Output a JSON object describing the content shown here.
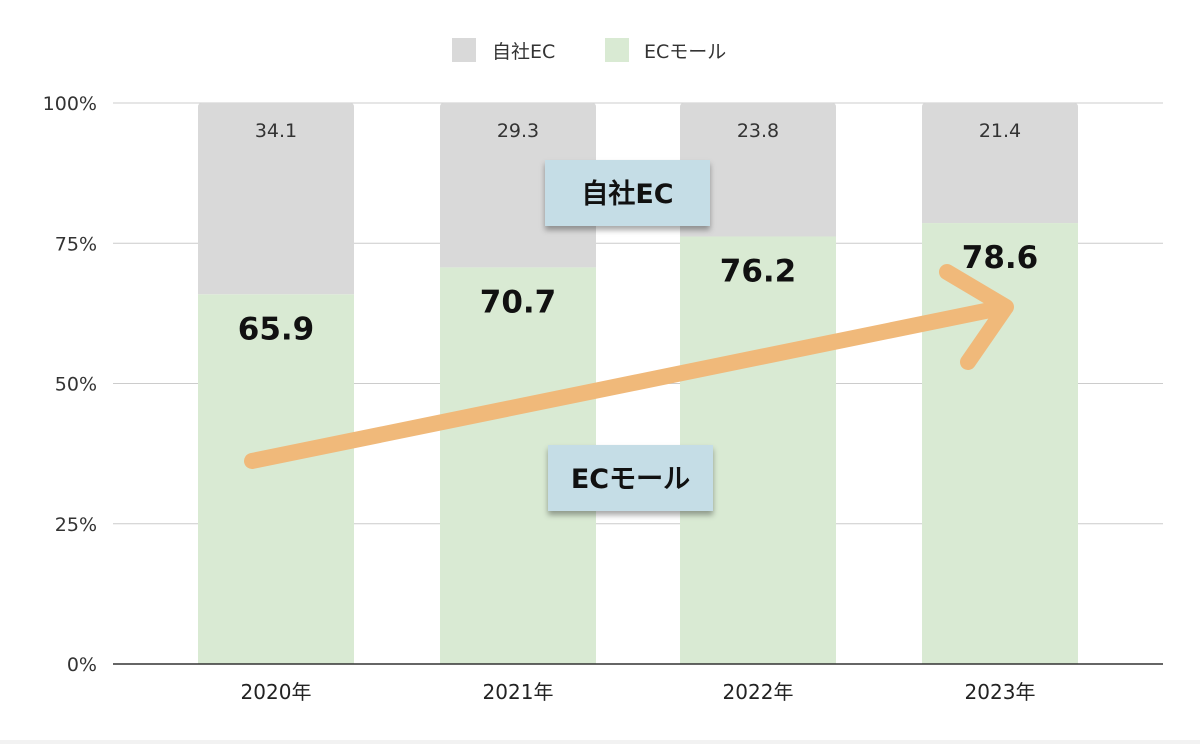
{
  "chart_data": {
    "type": "bar",
    "stacked": true,
    "categories": [
      "2020年",
      "2021年",
      "2022年",
      "2023年"
    ],
    "series": [
      {
        "name": "ECモール",
        "values": [
          65.9,
          70.7,
          76.2,
          78.6
        ],
        "color": "#d9ead3"
      },
      {
        "name": "自社EC",
        "values": [
          34.1,
          29.3,
          23.8,
          21.4
        ],
        "color": "#d9d9d9"
      }
    ],
    "ylim": [
      0,
      100
    ],
    "yticks": [
      "0%",
      "25%",
      "50%",
      "75%",
      "100%"
    ],
    "legend_position": "top",
    "grid": true,
    "callouts": {
      "upper": "自社EC",
      "lower": "ECモール",
      "color": "#c5dde6"
    },
    "trend_arrow_color": "#f0b97a"
  }
}
